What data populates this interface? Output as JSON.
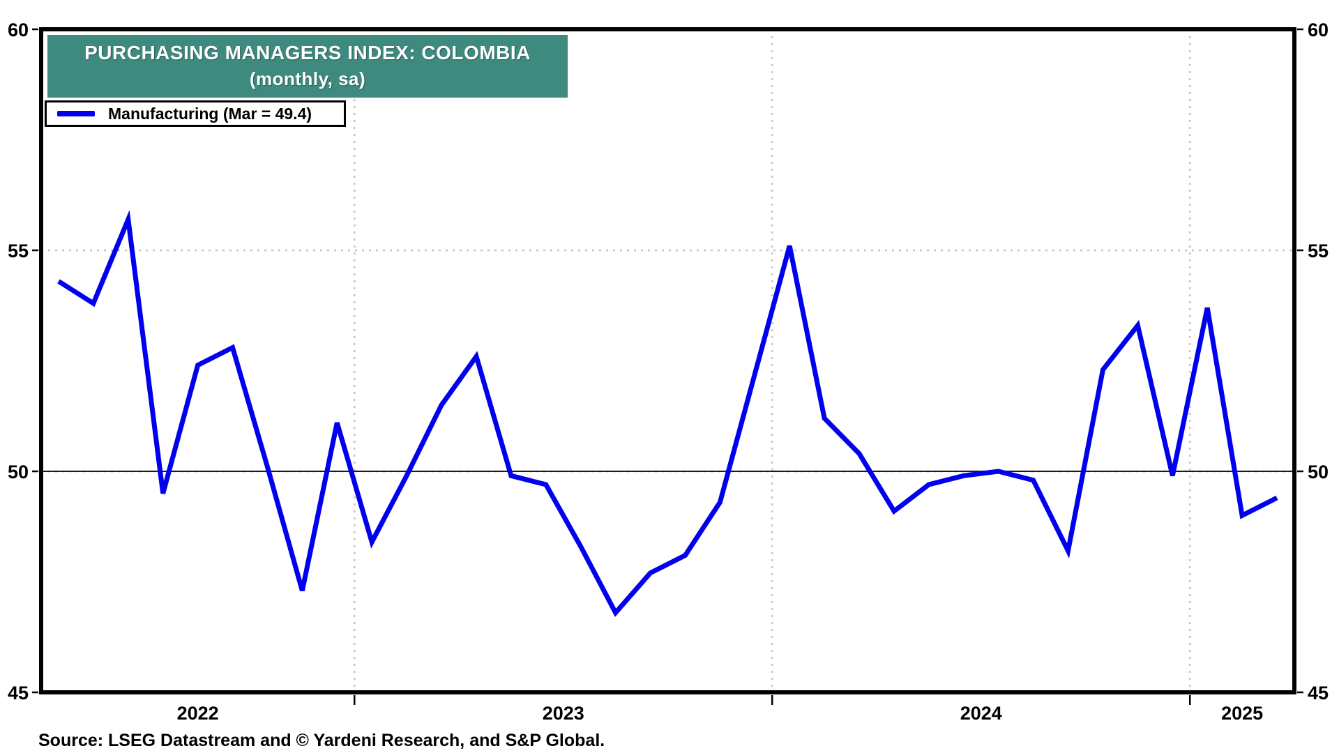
{
  "title": {
    "line1": "PURCHASING MANAGERS INDEX: COLOMBIA",
    "line2": "(monthly, sa)"
  },
  "legend": {
    "label": "Manufacturing (Mar = 49.4)"
  },
  "source": {
    "text": "Source: LSEG Datastream and © Yardeni Research, and S&P Global."
  },
  "colors": {
    "line": "#0000EE",
    "title_bg": "#3E8A7F",
    "title_text": "#FFFFFF",
    "grid_dotted": "#CBCBCB",
    "axis_frame": "#000000",
    "fifty_line": "#1A1A1A",
    "tick_text": "#000000"
  },
  "chart_data": {
    "type": "line",
    "title": "PURCHASING MANAGERS INDEX: COLOMBIA (monthly, sa)",
    "xlabel": "",
    "ylabel": "",
    "ylim": [
      45,
      60
    ],
    "y_ticks": [
      60,
      55,
      50,
      45
    ],
    "y_ticks_both_sides": true,
    "y_dotted_gridlines": [
      55,
      50
    ],
    "y_solid_line": 50,
    "grid": "dotted",
    "legend_position": "top-left",
    "x_months": [
      "2022-04",
      "2022-05",
      "2022-06",
      "2022-07",
      "2022-08",
      "2022-09",
      "2022-10",
      "2022-11",
      "2022-12",
      "2023-01",
      "2023-02",
      "2023-03",
      "2023-04",
      "2023-05",
      "2023-06",
      "2023-07",
      "2023-08",
      "2023-09",
      "2023-10",
      "2023-11",
      "2023-12",
      "2024-01",
      "2024-02",
      "2024-03",
      "2024-04",
      "2024-05",
      "2024-06",
      "2024-07",
      "2024-08",
      "2024-09",
      "2024-10",
      "2024-11",
      "2024-12",
      "2025-01",
      "2025-02",
      "2025-03"
    ],
    "series": [
      {
        "name": "Manufacturing",
        "color": "#0000EE",
        "last_point_label": "Mar = 49.4",
        "values": [
          54.3,
          53.8,
          55.7,
          49.5,
          52.4,
          52.8,
          50.1,
          47.3,
          51.1,
          48.4,
          49.9,
          51.5,
          52.6,
          49.9,
          49.7,
          48.3,
          46.8,
          47.7,
          48.1,
          49.3,
          52.2,
          55.1,
          51.2,
          50.4,
          49.1,
          49.7,
          49.9,
          50.0,
          49.8,
          48.2,
          52.3,
          53.3,
          49.9,
          53.7,
          49.0,
          49.4
        ]
      }
    ],
    "x_year_labels": [
      {
        "label": "2022",
        "span": [
          0,
          9
        ]
      },
      {
        "label": "2023",
        "span": [
          9,
          21
        ]
      },
      {
        "label": "2024",
        "span": [
          21,
          33
        ]
      },
      {
        "label": "2025",
        "span": [
          33,
          36
        ]
      }
    ],
    "year_boundaries_month_index": [
      9,
      21,
      33
    ]
  }
}
